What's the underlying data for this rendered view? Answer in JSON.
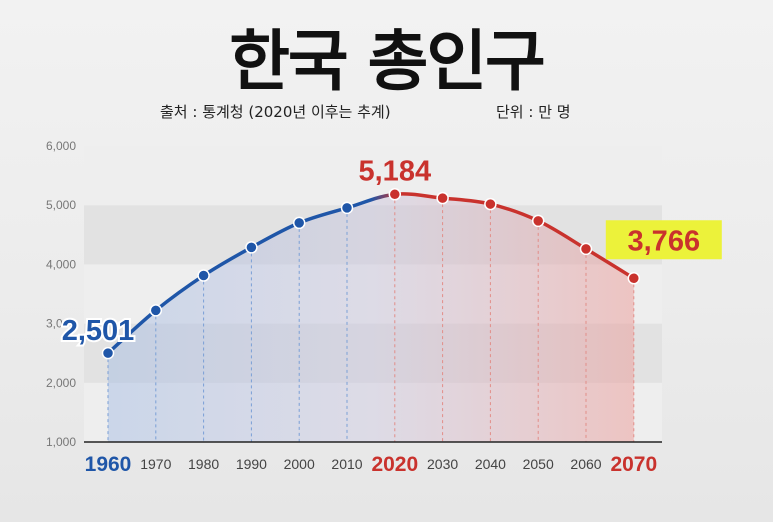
{
  "title": "한국 총인구",
  "source_note": "출처 : 통계청 (2020년 이후는 추계)",
  "unit_note": "단위 : 만 명",
  "colors": {
    "past": "#1f56a8",
    "future": "#c9322d",
    "highlight": "#ecf23a"
  },
  "chart_data": {
    "type": "line",
    "title": "한국 총인구",
    "xlabel": "",
    "ylabel": "",
    "ylim": [
      1000,
      6000
    ],
    "grid": true,
    "x": [
      1960,
      1970,
      1980,
      1990,
      2000,
      2010,
      2020,
      2030,
      2040,
      2050,
      2060,
      2070
    ],
    "y_ticks": [
      "1,000",
      "2,000",
      "3,000",
      "4,000",
      "5,000",
      "6,000"
    ],
    "series": [
      {
        "values": [
          2501,
          3224,
          3812,
          4287,
          4701,
          4955,
          5184,
          5120,
          5019,
          4736,
          4262,
          3766
        ]
      }
    ],
    "data_labels": [
      {
        "x": 1960,
        "text": "2,501",
        "color": "past"
      },
      {
        "x": 2020,
        "text": "5,184",
        "color": "future"
      },
      {
        "x": 2070,
        "text": "3,766",
        "color": "future",
        "highlight": true
      }
    ],
    "highlight_x": {
      "1960": "past",
      "2020": "future",
      "2070": "future"
    }
  }
}
